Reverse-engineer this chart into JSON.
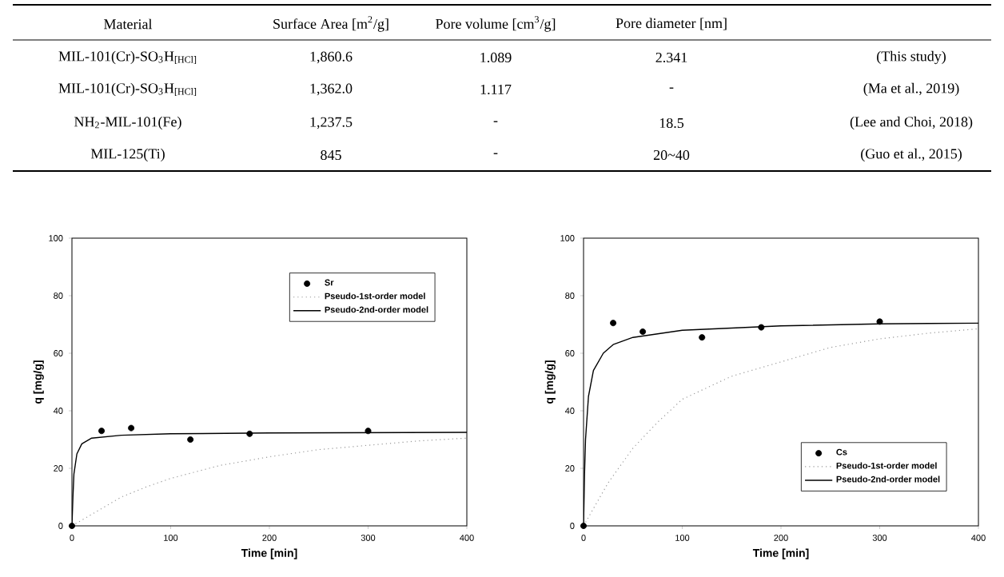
{
  "chart_data": [
    {
      "type": "other",
      "annotations": [
        "Material",
        "Surface  Area  [m$^{2}$/g]",
        "Pore  volume  [cm$^{3}$/g]",
        "Pore  diameter  [nm]",
        "MIL-101(Cr)-SO$_{3}$H$_{[HCl]}$",
        "1,860.6",
        "1.089",
        "2.341",
        "(This study)",
        "MIL-101(Cr)-SO$_{3}$H$_{[HCl]}$",
        "1,362.0",
        "1.117",
        "-",
        "(Ma et al., 2019)",
        "NH$_{2}$-MIL-101(Fe)",
        "1,237.5",
        "-",
        "18.5",
        "(Lee and Choi, 2018)",
        "MIL-125(Ti)",
        "845",
        "-",
        "20~40",
        "(Guo et al., 2015)"
      ]
    },
    {
      "type": "scatter",
      "xlabel": "Time [min]",
      "ylabel": "q [mg/g]",
      "xlim": [
        0,
        400
      ],
      "ylim": [
        0,
        100
      ],
      "xticks": [
        0,
        100,
        200,
        300,
        400
      ],
      "yticks": [
        0,
        20,
        40,
        60,
        80,
        100
      ],
      "legend": "top right",
      "grid": false,
      "series": [
        {
          "name": "Sr",
          "type": "scatter",
          "marker": "circle",
          "color": "#000000",
          "x": [
            0,
            30,
            60,
            120,
            180,
            300
          ],
          "values": [
            0,
            33,
            34,
            30,
            32,
            33
          ]
        },
        {
          "name": "Pseudo-1st-order model",
          "type": "line",
          "line_style": "dotted",
          "marker": "none",
          "color": "#999999",
          "x": [
            0,
            25,
            50,
            75,
            100,
            150,
            200,
            250,
            300,
            350,
            400
          ],
          "values": [
            0,
            5,
            10,
            13.5,
            16.5,
            21,
            24,
            26.5,
            28,
            29.5,
            30.5
          ]
        },
        {
          "name": "Pseudo-2nd-order model",
          "type": "line",
          "line_style": "solid",
          "marker": "none",
          "color": "#000000",
          "x": [
            0,
            1,
            2,
            5,
            10,
            20,
            50,
            100,
            200,
            300,
            400
          ],
          "values": [
            0,
            10,
            18,
            25,
            28.5,
            30.5,
            31.5,
            32,
            32.3,
            32.4,
            32.5
          ]
        }
      ]
    },
    {
      "type": "scatter",
      "xlabel": "Time [min]",
      "ylabel": "q [mg/g]",
      "xlim": [
        0,
        400
      ],
      "ylim": [
        0,
        100
      ],
      "xticks": [
        0,
        100,
        200,
        300,
        400
      ],
      "yticks": [
        0,
        20,
        40,
        60,
        80,
        100
      ],
      "legend": "bottom right",
      "grid": false,
      "series": [
        {
          "name": "Cs",
          "type": "scatter",
          "marker": "circle",
          "color": "#000000",
          "x": [
            0,
            30,
            60,
            120,
            180,
            300
          ],
          "values": [
            0,
            70.5,
            67.5,
            65.5,
            69,
            71
          ]
        },
        {
          "name": "Pseudo-1st-order model",
          "type": "line",
          "line_style": "dotted",
          "marker": "none",
          "color": "#999999",
          "x": [
            0,
            25,
            50,
            75,
            100,
            150,
            200,
            250,
            300,
            350,
            400
          ],
          "values": [
            0,
            15,
            27,
            36,
            44,
            52,
            57,
            62,
            65,
            67,
            68.5
          ]
        },
        {
          "name": "Pseudo-2nd-order model",
          "type": "line",
          "line_style": "solid",
          "marker": "none",
          "color": "#000000",
          "x": [
            0,
            1,
            2,
            5,
            10,
            20,
            30,
            50,
            100,
            200,
            300,
            400
          ],
          "values": [
            0,
            18,
            30,
            45,
            54,
            60,
            63,
            65.5,
            68,
            69.5,
            70.2,
            70.5
          ]
        }
      ]
    }
  ]
}
